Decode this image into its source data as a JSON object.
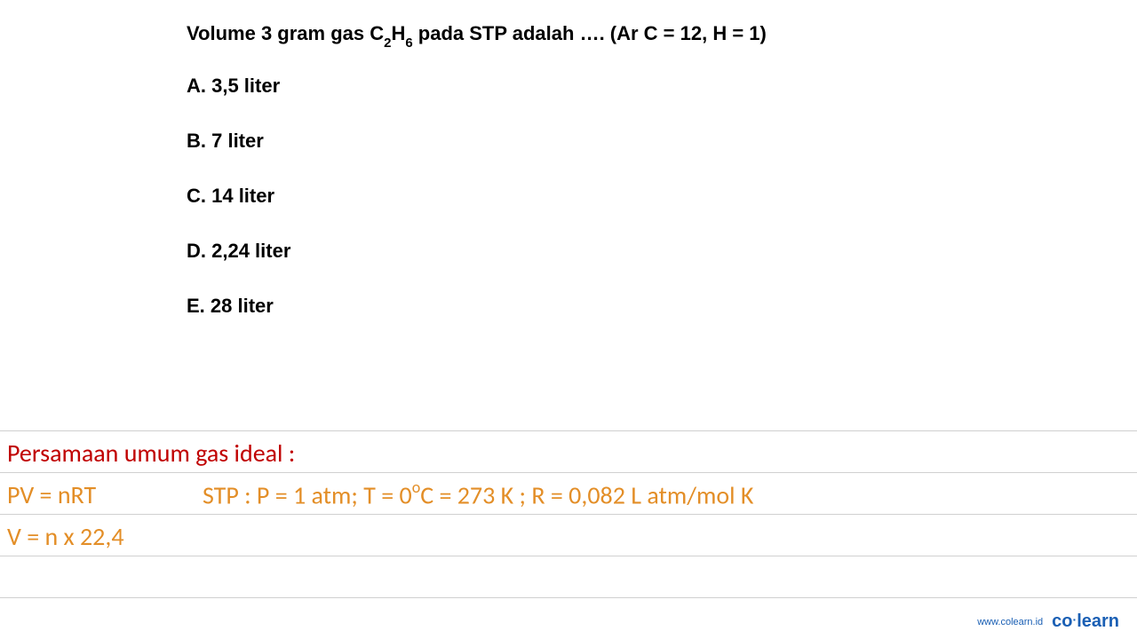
{
  "question": {
    "prefix": "Volume 3 gram gas C",
    "sub1": "2",
    "mid": "H",
    "sub2": "6",
    "suffix": " pada STP adalah …. (Ar C = 12, H = 1)"
  },
  "options": [
    {
      "label": "A. 3,5 liter"
    },
    {
      "label": "B. 7 liter"
    },
    {
      "label": "C. 14 liter"
    },
    {
      "label": "D. 2,24 liter"
    },
    {
      "label": "E. 28 liter"
    }
  ],
  "notes": {
    "title": "Persamaan umum gas ideal :",
    "formula1_left": "PV = nRT",
    "formula1_right_prefix": "STP : P = 1 atm; T = 0",
    "formula1_right_sup": "o",
    "formula1_right_suffix": "C = 273 K ; R = 0,082 L atm/mol K",
    "formula2": "V = n x 22,4"
  },
  "footer": {
    "url": "www.colearn.id",
    "logo_part1": "co",
    "logo_dot": "·",
    "logo_part2": "learn"
  },
  "colors": {
    "question_text": "#000000",
    "red": "#c00000",
    "orange": "#e38e27",
    "hr": "#d0d0d0",
    "footer": "#1a5fb4",
    "background": "#ffffff"
  }
}
